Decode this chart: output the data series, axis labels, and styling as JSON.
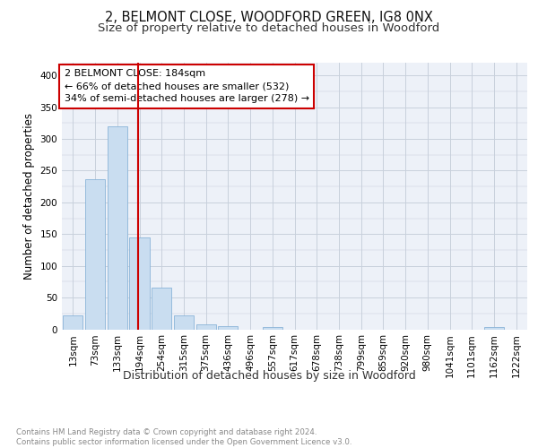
{
  "title1": "2, BELMONT CLOSE, WOODFORD GREEN, IG8 0NX",
  "title2": "Size of property relative to detached houses in Woodford",
  "xlabel": "Distribution of detached houses by size in Woodford",
  "ylabel": "Number of detached properties",
  "categories": [
    "13sqm",
    "73sqm",
    "133sqm",
    "194sqm",
    "254sqm",
    "315sqm",
    "375sqm",
    "436sqm",
    "496sqm",
    "557sqm",
    "617sqm",
    "678sqm",
    "738sqm",
    "799sqm",
    "859sqm",
    "920sqm",
    "980sqm",
    "1041sqm",
    "1101sqm",
    "1162sqm",
    "1222sqm"
  ],
  "values": [
    22,
    236,
    320,
    145,
    65,
    22,
    8,
    5,
    0,
    4,
    0,
    0,
    0,
    0,
    0,
    0,
    0,
    0,
    0,
    4,
    0
  ],
  "bar_color": "#c9ddf0",
  "bar_edge_color": "#8ab4d8",
  "vline_pos": 2.925,
  "vline_color": "#cc0000",
  "annotation_text": "2 BELMONT CLOSE: 184sqm\n← 66% of detached houses are smaller (532)\n34% of semi-detached houses are larger (278) →",
  "annotation_box_color": "#ffffff",
  "annotation_box_edge": "#cc0000",
  "ylim": [
    0,
    420
  ],
  "yticks": [
    0,
    50,
    100,
    150,
    200,
    250,
    300,
    350,
    400
  ],
  "grid_color": "#c8d0dc",
  "bg_color": "#edf1f8",
  "footnote": "Contains HM Land Registry data © Crown copyright and database right 2024.\nContains public sector information licensed under the Open Government Licence v3.0.",
  "title1_fontsize": 10.5,
  "title2_fontsize": 9.5,
  "xlabel_fontsize": 9,
  "ylabel_fontsize": 8.5,
  "tick_fontsize": 7.5,
  "annot_fontsize": 8,
  "footnote_fontsize": 6.2
}
